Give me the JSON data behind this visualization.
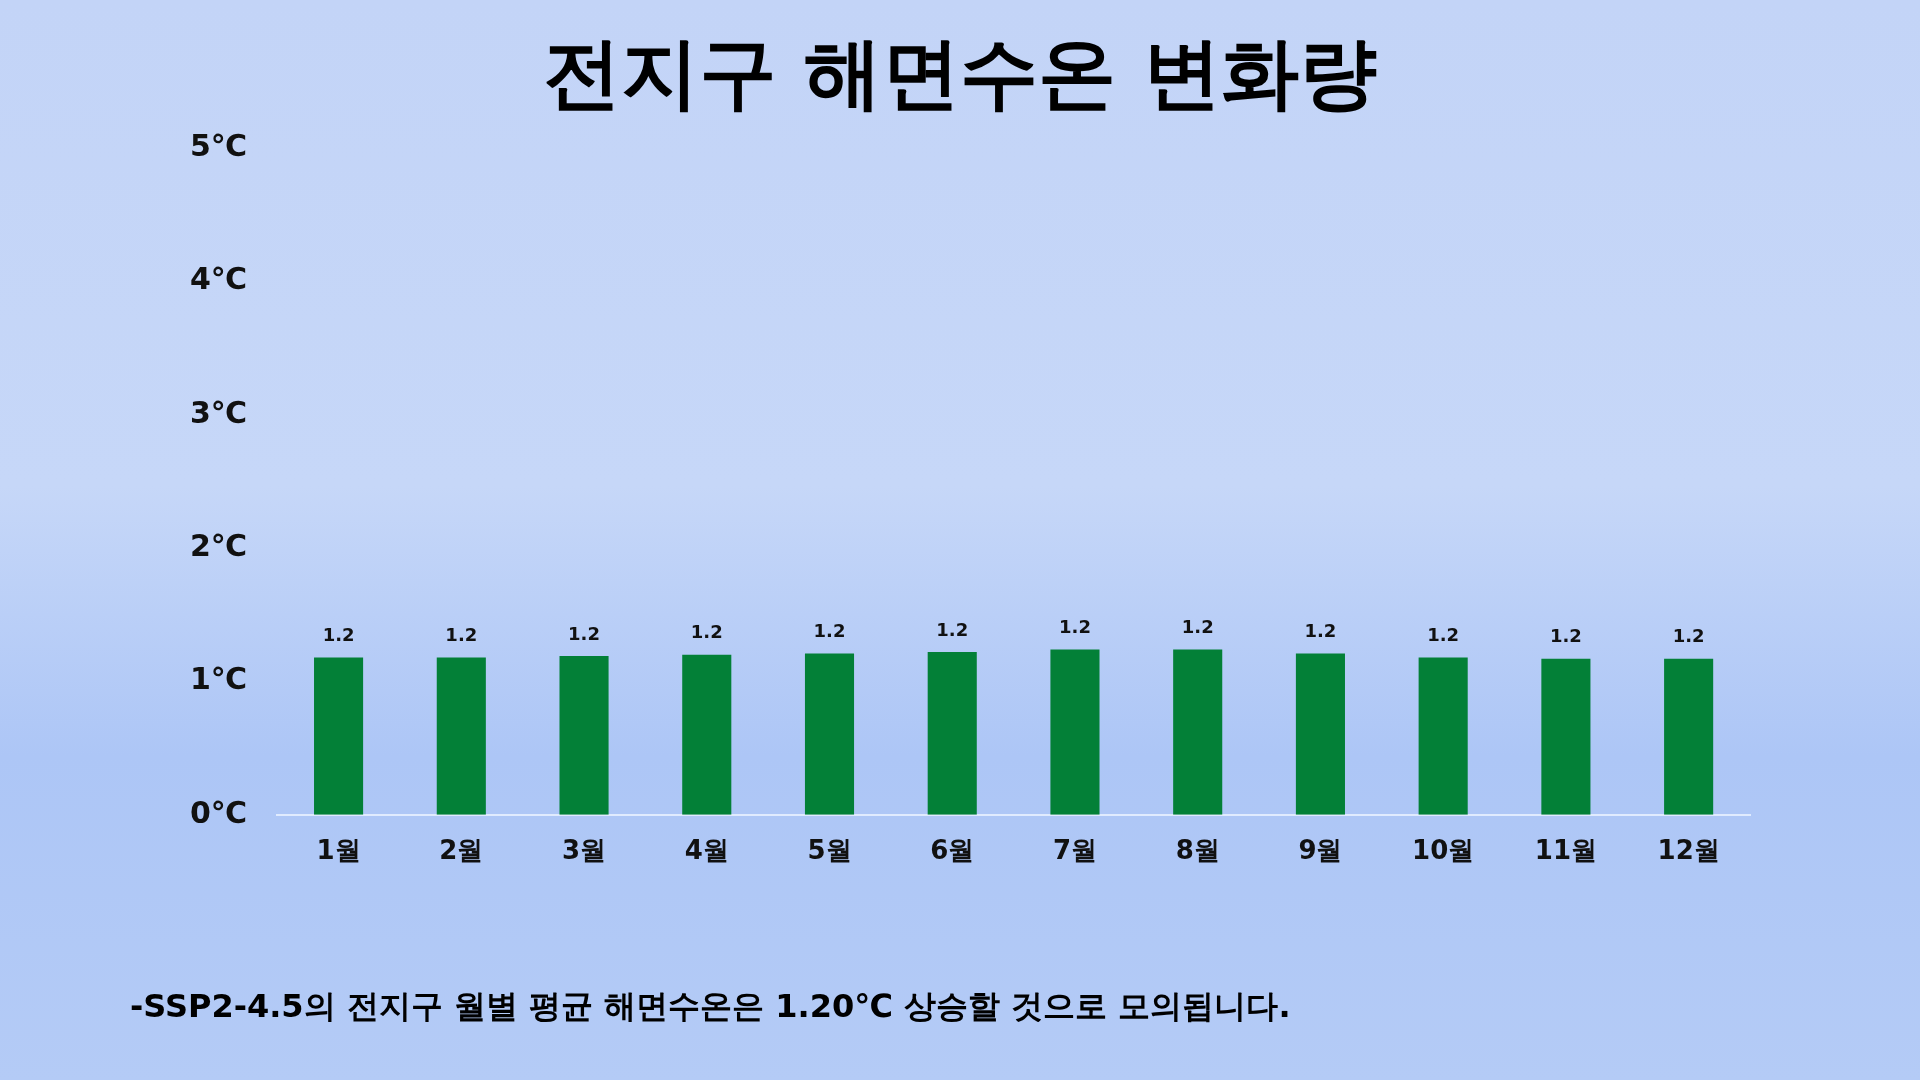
{
  "chart_data": {
    "type": "bar",
    "title": "전지구 해면수온 변화량",
    "categories": [
      "1월",
      "2월",
      "3월",
      "4월",
      "5월",
      "6월",
      "7월",
      "8월",
      "9월",
      "10월",
      "11월",
      "12월"
    ],
    "values": [
      1.18,
      1.18,
      1.19,
      1.2,
      1.21,
      1.22,
      1.24,
      1.24,
      1.21,
      1.18,
      1.17,
      1.17
    ],
    "value_labels": [
      "1.2",
      "1.2",
      "1.2",
      "1.2",
      "1.2",
      "1.2",
      "1.2",
      "1.2",
      "1.2",
      "1.2",
      "1.2",
      "1.2"
    ],
    "color": "#038037",
    "ylim": [
      0,
      5
    ],
    "yticks": [
      {
        "value": 0,
        "label": "0℃"
      },
      {
        "value": 1,
        "label": "1℃"
      },
      {
        "value": 2,
        "label": "2℃"
      },
      {
        "value": 3,
        "label": "3℃"
      },
      {
        "value": 4,
        "label": "4℃"
      },
      {
        "value": 5,
        "label": "5℃"
      }
    ],
    "grid": false,
    "legend": false,
    "annotations": [
      "-SSP2-4.5의 전지구 월별 평균 해면수온은 1.20℃ 상승할 것으로 모의됩니다."
    ]
  }
}
